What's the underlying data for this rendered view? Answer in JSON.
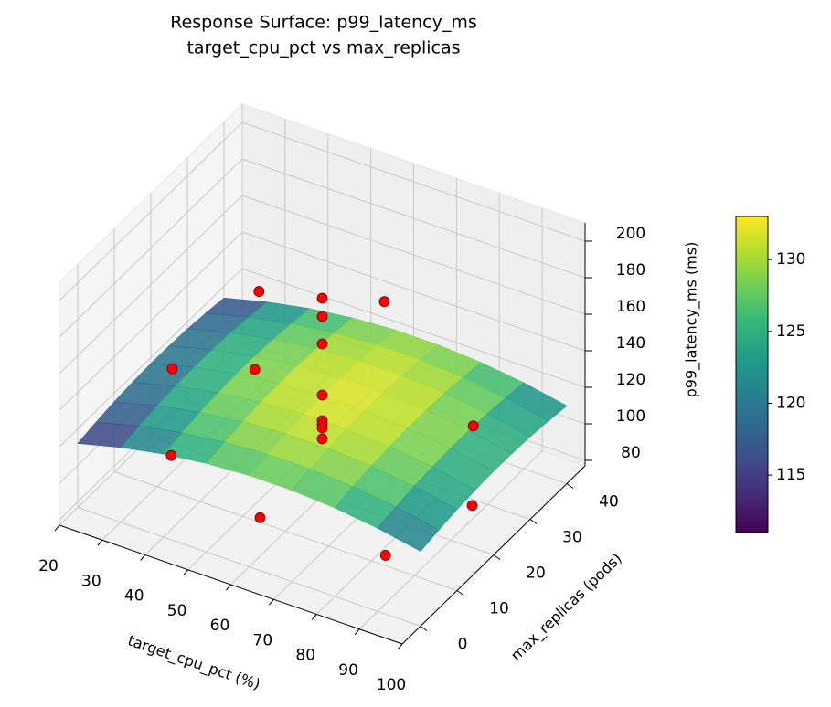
{
  "chart_data": {
    "type": "surface3d",
    "title": "Response Surface: p99_latency_ms",
    "subtitle": "target_cpu_pct vs max_replicas",
    "xlabel": "target_cpu_pct (%)",
    "ylabel": "max_replicas (pods)",
    "zlabel": "p99_latency_ms (ms)",
    "xlim": [
      20,
      100
    ],
    "xticks": [
      20,
      30,
      40,
      50,
      60,
      70,
      80,
      90,
      100
    ],
    "ylim": [
      -5,
      45
    ],
    "yticks": [
      0,
      10,
      20,
      30,
      40
    ],
    "zlim": [
      77,
      210
    ],
    "zticks": [
      80,
      100,
      120,
      140,
      160,
      180,
      200
    ],
    "grid": true,
    "surface": {
      "x": [
        20,
        30,
        40,
        50,
        60,
        70,
        80,
        90,
        100
      ],
      "y": [
        0,
        5,
        10,
        15,
        20,
        25,
        30,
        35,
        40
      ],
      "z": [
        [
          112.0,
          118.0,
          122.5,
          125.5,
          127.0,
          127.0,
          125.5,
          122.5,
          118.0
        ],
        [
          113.9,
          119.9,
          124.4,
          127.4,
          128.9,
          128.9,
          127.4,
          124.4,
          119.9
        ],
        [
          115.4,
          121.4,
          125.9,
          128.9,
          130.4,
          130.4,
          128.9,
          125.9,
          121.4
        ],
        [
          116.3,
          122.3,
          126.8,
          129.8,
          131.3,
          131.3,
          129.8,
          126.8,
          122.3
        ],
        [
          116.8,
          122.8,
          127.3,
          130.3,
          131.8,
          131.8,
          130.3,
          127.3,
          122.8
        ],
        [
          116.7,
          122.7,
          127.2,
          130.2,
          131.7,
          131.7,
          130.2,
          127.2,
          122.7
        ],
        [
          116.2,
          122.2,
          126.7,
          129.7,
          131.2,
          131.2,
          129.7,
          126.7,
          122.2
        ],
        [
          115.1,
          121.1,
          125.6,
          128.6,
          130.1,
          130.1,
          128.6,
          125.6,
          121.1
        ],
        [
          113.6,
          119.6,
          124.1,
          127.1,
          128.6,
          128.6,
          127.1,
          124.1,
          119.6
        ]
      ],
      "cmap": "viridis",
      "clim": [
        111,
        133
      ],
      "cticks": [
        115,
        120,
        125,
        130
      ]
    },
    "points": {
      "x": [
        25,
        35,
        35,
        60,
        60,
        85,
        85,
        95,
        60,
        60,
        60,
        60,
        60,
        60,
        60,
        60,
        40
      ],
      "y": [
        20,
        8,
        32,
        3,
        37,
        8,
        32,
        20,
        20,
        20,
        20,
        20,
        20,
        20,
        20,
        20,
        25
      ],
      "z": [
        118,
        102,
        145,
        98,
        150,
        88,
        112,
        100,
        175,
        185,
        160,
        132,
        118,
        116,
        114,
        108,
        120
      ],
      "color": "red"
    }
  }
}
